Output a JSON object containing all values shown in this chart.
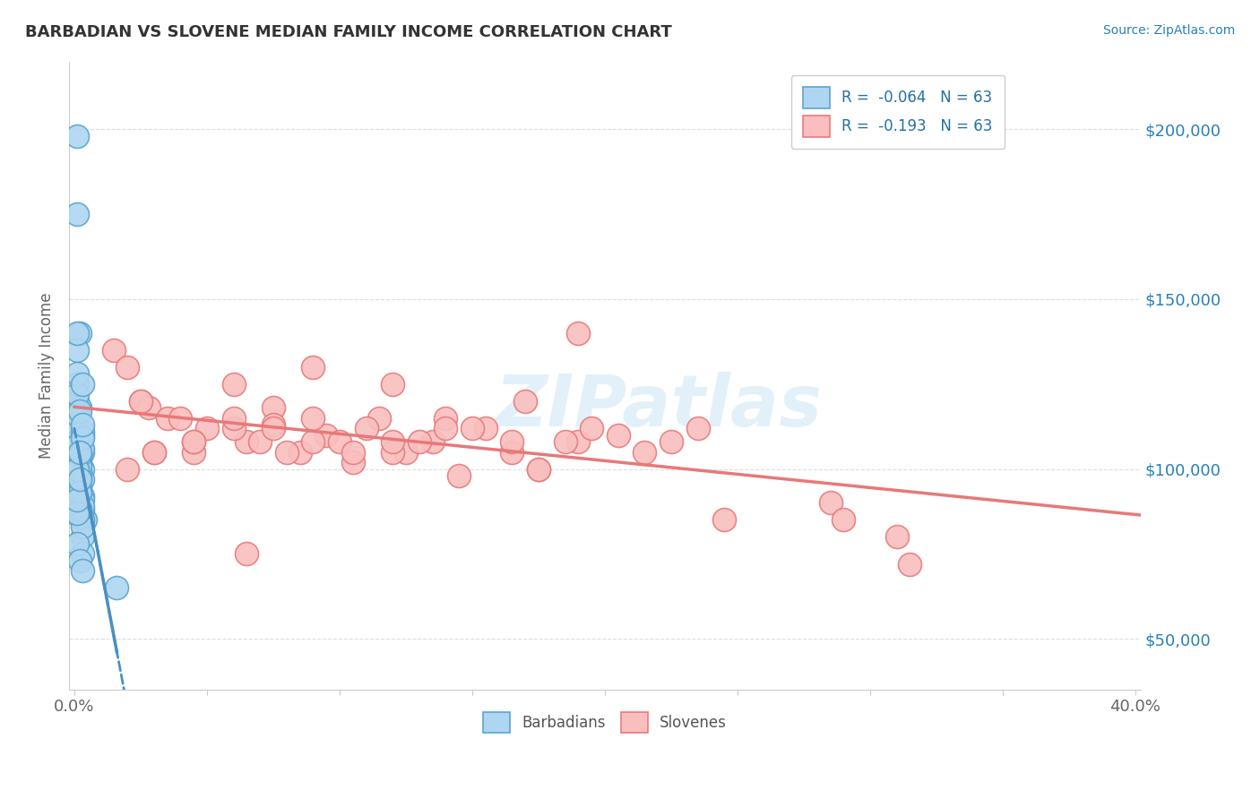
{
  "title": "BARBADIAN VS SLOVENE MEDIAN FAMILY INCOME CORRELATION CHART",
  "source_text": "Source: ZipAtlas.com",
  "ylabel": "Median Family Income",
  "xlim": [
    -0.002,
    0.402
  ],
  "ylim": [
    35000,
    220000
  ],
  "yticks": [
    50000,
    100000,
    150000,
    200000
  ],
  "ytick_labels": [
    "$50,000",
    "$100,000",
    "$150,000",
    "$200,000"
  ],
  "blue_color": "#AED6F1",
  "blue_edge": "#5BA4CF",
  "pink_color": "#F9BFBE",
  "pink_edge": "#E87B7B",
  "trend_blue_color": "#4A90C4",
  "trend_pink_color": "#E87878",
  "watermark_color": "#D0E8F5",
  "legend_label_color": "#2471A3",
  "barbadians_label": "Barbadians",
  "slovenes_label": "Slovenes",
  "legend_blue_label": "R =  -0.064   N = 63",
  "legend_pink_label": "R =  -0.193   N = 63",
  "blue_x": [
    0.002,
    0.003,
    0.001,
    0.004,
    0.002,
    0.003,
    0.001,
    0.002,
    0.003,
    0.001,
    0.002,
    0.001,
    0.003,
    0.002,
    0.001,
    0.002,
    0.003,
    0.001,
    0.002,
    0.003,
    0.002,
    0.001,
    0.003,
    0.002,
    0.001,
    0.002,
    0.003,
    0.001,
    0.002,
    0.003,
    0.001,
    0.002,
    0.001,
    0.003,
    0.002,
    0.001,
    0.002,
    0.003,
    0.001,
    0.002,
    0.003,
    0.001,
    0.002,
    0.003,
    0.016,
    0.002,
    0.001,
    0.003,
    0.002,
    0.001,
    0.002,
    0.003,
    0.001,
    0.002,
    0.001,
    0.003,
    0.002,
    0.001,
    0.002,
    0.003,
    0.001,
    0.002,
    0.003
  ],
  "blue_y": [
    95000,
    105000,
    198000,
    85000,
    140000,
    110000,
    120000,
    90000,
    100000,
    175000,
    95000,
    115000,
    88000,
    102000,
    125000,
    93000,
    97000,
    108000,
    98000,
    92000,
    87000,
    112000,
    85000,
    103000,
    96000,
    118000,
    91000,
    107000,
    99000,
    89000,
    135000,
    94000,
    122000,
    106000,
    88000,
    116000,
    101000,
    80000,
    92000,
    86000,
    83000,
    128000,
    104000,
    111000,
    65000,
    117000,
    90000,
    109000,
    97000,
    100000,
    88000,
    113000,
    140000,
    93000,
    87000,
    125000,
    105000,
    91000,
    97000,
    75000,
    78000,
    73000,
    70000
  ],
  "pink_x": [
    0.015,
    0.025,
    0.028,
    0.035,
    0.045,
    0.05,
    0.06,
    0.065,
    0.075,
    0.075,
    0.085,
    0.09,
    0.095,
    0.105,
    0.115,
    0.12,
    0.125,
    0.135,
    0.145,
    0.155,
    0.165,
    0.17,
    0.175,
    0.19,
    0.195,
    0.205,
    0.215,
    0.225,
    0.235,
    0.245,
    0.02,
    0.025,
    0.03,
    0.04,
    0.045,
    0.06,
    0.065,
    0.07,
    0.08,
    0.09,
    0.1,
    0.11,
    0.12,
    0.13,
    0.14,
    0.15,
    0.165,
    0.175,
    0.185,
    0.02,
    0.03,
    0.045,
    0.06,
    0.075,
    0.09,
    0.105,
    0.12,
    0.14,
    0.31,
    0.315,
    0.285,
    0.29,
    0.19
  ],
  "pink_y": [
    135000,
    120000,
    118000,
    115000,
    105000,
    112000,
    125000,
    108000,
    118000,
    113000,
    105000,
    130000,
    110000,
    102000,
    115000,
    125000,
    105000,
    108000,
    98000,
    112000,
    105000,
    120000,
    100000,
    108000,
    112000,
    110000,
    105000,
    108000,
    112000,
    85000,
    100000,
    120000,
    105000,
    115000,
    108000,
    112000,
    75000,
    108000,
    105000,
    115000,
    108000,
    112000,
    105000,
    108000,
    115000,
    112000,
    108000,
    100000,
    108000,
    130000,
    105000,
    108000,
    115000,
    112000,
    108000,
    105000,
    108000,
    112000,
    80000,
    72000,
    90000,
    85000,
    140000
  ]
}
